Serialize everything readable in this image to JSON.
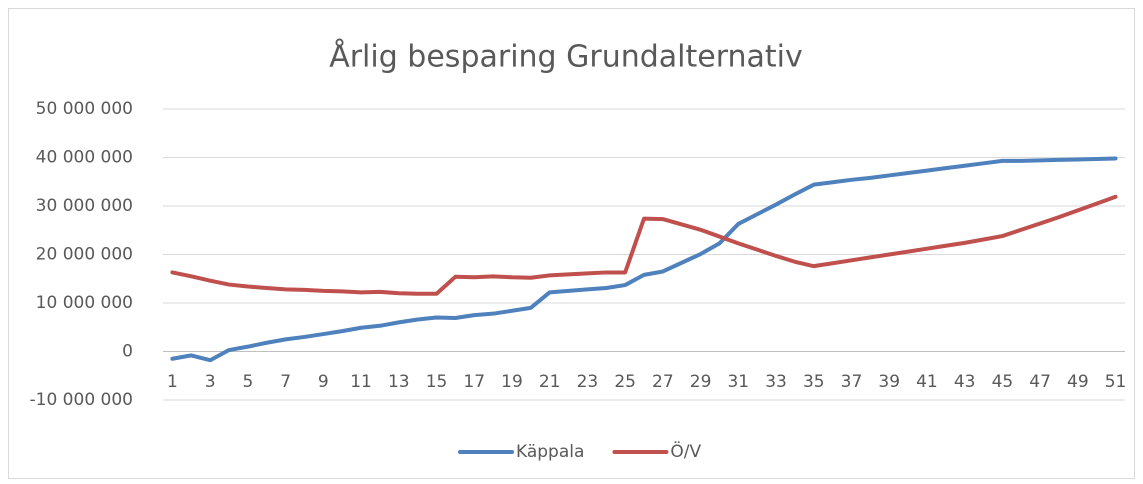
{
  "chart_data": {
    "type": "line",
    "title": "Årlig besparing Grundalternativ",
    "categories": [
      1,
      null,
      3,
      null,
      5,
      null,
      7,
      null,
      9,
      null,
      11,
      null,
      13,
      null,
      15,
      null,
      17,
      null,
      19,
      null,
      21,
      null,
      23,
      null,
      25,
      null,
      27,
      null,
      29,
      null,
      31,
      null,
      33,
      null,
      35,
      null,
      37,
      null,
      39,
      null,
      41,
      null,
      43,
      null,
      45,
      null,
      47,
      null,
      49,
      null,
      51
    ],
    "series": [
      {
        "name": "Käppala",
        "color": "#4f81bd",
        "values": [
          -1500000,
          -800000,
          -1800000,
          300000,
          1000000,
          1800000,
          2500000,
          3000000,
          3600000,
          4200000,
          4900000,
          5300000,
          6000000,
          6600000,
          7000000,
          6900000,
          7500000,
          7800000,
          8400000,
          9000000,
          12200000,
          12500000,
          12800000,
          13100000,
          13700000,
          15800000,
          16500000,
          18300000,
          20100000,
          22300000,
          26300000,
          28300000,
          30300000,
          32400000,
          34400000,
          34900000,
          35400000,
          35800000,
          36300000,
          36800000,
          37300000,
          37800000,
          38300000,
          38800000,
          39300000,
          39300000,
          39400000,
          39500000,
          39600000,
          39700000,
          39800000
        ]
      },
      {
        "name": "Ö/V",
        "color": "#c0504d",
        "values": [
          16300000,
          15500000,
          14600000,
          13800000,
          13400000,
          13100000,
          12800000,
          12700000,
          12500000,
          12400000,
          12200000,
          12300000,
          12000000,
          11900000,
          11900000,
          15400000,
          15300000,
          15500000,
          15300000,
          15200000,
          15700000,
          15900000,
          16100000,
          16300000,
          16300000,
          27400000,
          27300000,
          26200000,
          25100000,
          23700000,
          22300000,
          21000000,
          19700000,
          18500000,
          17600000,
          18200000,
          18800000,
          19400000,
          20000000,
          20600000,
          21200000,
          21800000,
          22400000,
          23100000,
          23800000,
          25100000,
          26400000,
          27700000,
          29100000,
          30500000,
          31900000
        ]
      }
    ],
    "ylim": [
      -10000000,
      50000000
    ],
    "yticks": [
      {
        "value": -10000000,
        "label": "-10 000 000"
      },
      0,
      {
        "value": 10000000,
        "label": "10 000 000"
      },
      {
        "value": 20000000,
        "label": "20 000 000"
      },
      {
        "value": 30000000,
        "label": "30 000 000"
      },
      {
        "value": 40000000,
        "label": "40 000 000"
      },
      {
        "value": 50000000,
        "label": "50 000 000"
      }
    ],
    "grid": true,
    "legend": "bottom"
  }
}
